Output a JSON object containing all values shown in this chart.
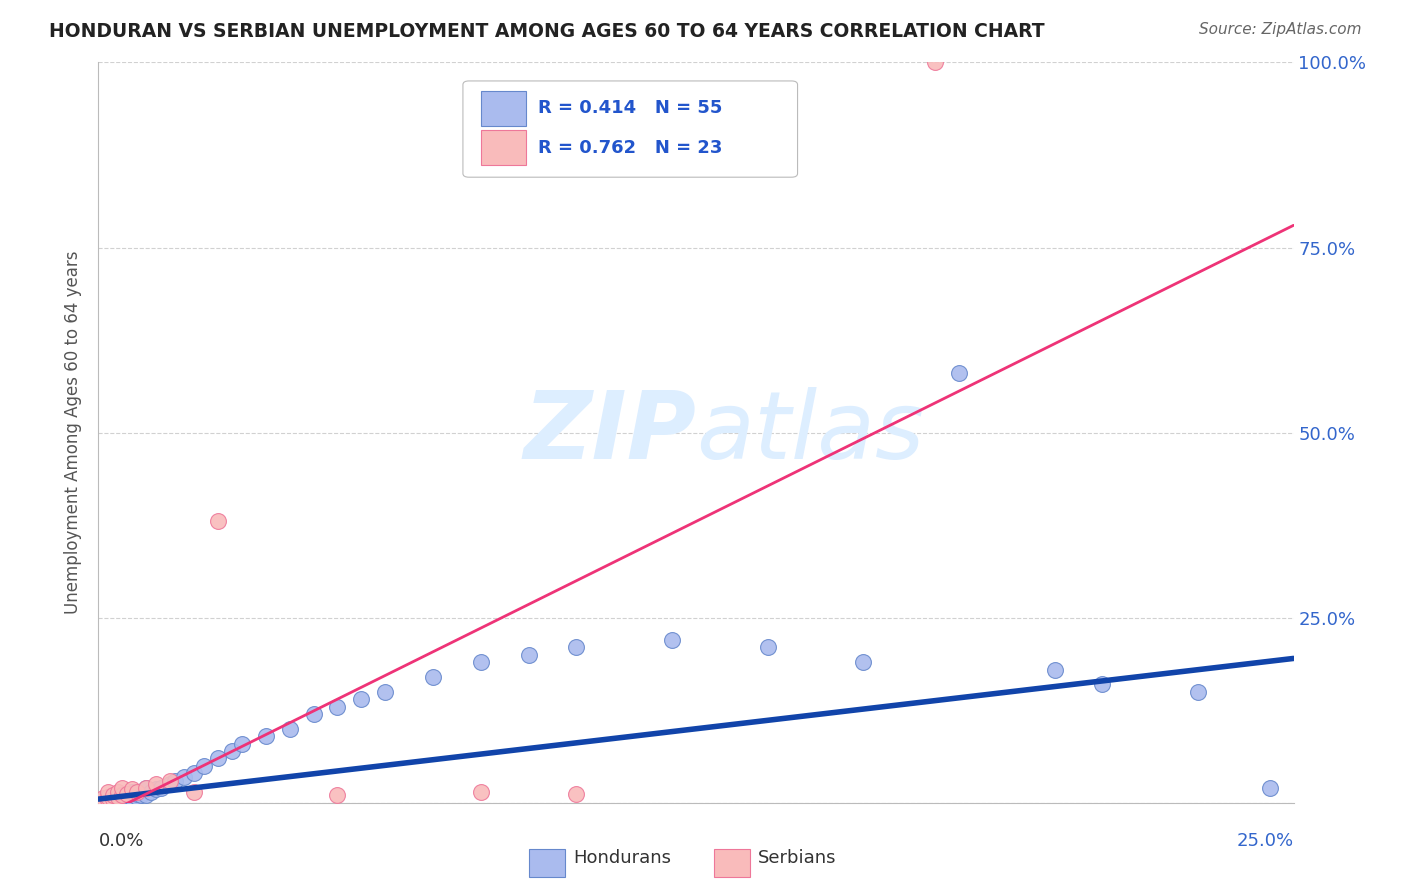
{
  "title": "HONDURAN VS SERBIAN UNEMPLOYMENT AMONG AGES 60 TO 64 YEARS CORRELATION CHART",
  "source": "Source: ZipAtlas.com",
  "ylabel": "Unemployment Among Ages 60 to 64 years",
  "xlim": [
    0,
    0.25
  ],
  "ylim": [
    0,
    1.0
  ],
  "honduran_R": 0.414,
  "honduran_N": 55,
  "serbian_R": 0.762,
  "serbian_N": 23,
  "honduran_color": "#AABBEE",
  "honduran_edge": "#6688CC",
  "serbian_color": "#F9BBBB",
  "serbian_edge": "#EE7799",
  "trendline_honduran_color": "#1144AA",
  "trendline_serbian_color": "#EE3377",
  "watermark_color": "#DDEEFF",
  "legend_color": "#2255CC",
  "hon_x": [
    0.001,
    0.001,
    0.001,
    0.002,
    0.002,
    0.002,
    0.002,
    0.003,
    0.003,
    0.003,
    0.003,
    0.004,
    0.004,
    0.004,
    0.005,
    0.005,
    0.005,
    0.006,
    0.006,
    0.007,
    0.007,
    0.008,
    0.008,
    0.009,
    0.01,
    0.01,
    0.011,
    0.012,
    0.013,
    0.015,
    0.016,
    0.018,
    0.02,
    0.022,
    0.025,
    0.028,
    0.03,
    0.035,
    0.04,
    0.045,
    0.05,
    0.055,
    0.06,
    0.07,
    0.08,
    0.09,
    0.1,
    0.12,
    0.14,
    0.16,
    0.18,
    0.2,
    0.21,
    0.23,
    0.245
  ],
  "hon_y": [
    0.002,
    0.003,
    0.005,
    0.002,
    0.004,
    0.006,
    0.008,
    0.003,
    0.005,
    0.007,
    0.01,
    0.004,
    0.006,
    0.009,
    0.005,
    0.008,
    0.012,
    0.006,
    0.01,
    0.007,
    0.015,
    0.008,
    0.012,
    0.01,
    0.01,
    0.02,
    0.015,
    0.018,
    0.02,
    0.025,
    0.03,
    0.035,
    0.04,
    0.05,
    0.06,
    0.07,
    0.08,
    0.09,
    0.1,
    0.12,
    0.13,
    0.14,
    0.15,
    0.17,
    0.19,
    0.2,
    0.21,
    0.22,
    0.21,
    0.19,
    0.58,
    0.18,
    0.16,
    0.15,
    0.02
  ],
  "ser_x": [
    0.001,
    0.001,
    0.002,
    0.002,
    0.002,
    0.003,
    0.003,
    0.004,
    0.004,
    0.005,
    0.005,
    0.006,
    0.007,
    0.008,
    0.01,
    0.012,
    0.015,
    0.02,
    0.025,
    0.05,
    0.08,
    0.1,
    0.175
  ],
  "ser_y": [
    0.003,
    0.006,
    0.004,
    0.008,
    0.015,
    0.005,
    0.01,
    0.008,
    0.015,
    0.01,
    0.02,
    0.012,
    0.018,
    0.015,
    0.02,
    0.025,
    0.03,
    0.015,
    0.38,
    0.01,
    0.015,
    0.012,
    1.0
  ],
  "hon_trend_x0": 0.0,
  "hon_trend_y0": 0.005,
  "hon_trend_x1": 0.25,
  "hon_trend_y1": 0.195,
  "ser_trend_x0": 0.0,
  "ser_trend_y0": -0.02,
  "ser_trend_x1": 0.25,
  "ser_trend_y1": 0.78
}
